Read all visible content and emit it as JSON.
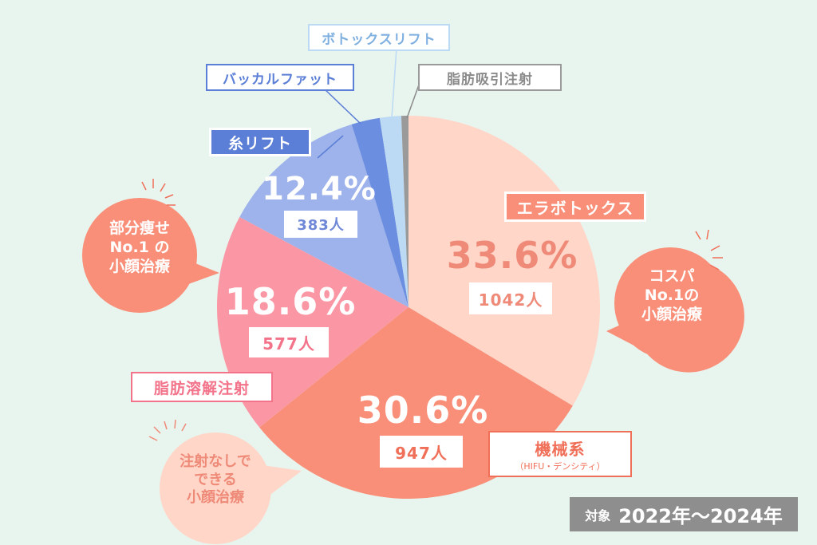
{
  "chart_data": {
    "type": "pie",
    "start_angle_deg": 0,
    "slices": [
      {
        "label": "エラボトックス",
        "percent": 33.6,
        "percent_label": "33.6%",
        "count_label": "1042人",
        "color": "#ffd6c8",
        "text_color": "#ef8a78"
      },
      {
        "label": "機械系",
        "sublabel": "（HIFU・デンシティ）",
        "percent": 30.6,
        "percent_label": "30.6%",
        "count_label": "947人",
        "color": "#f98f78",
        "text_color": "#f06f58"
      },
      {
        "label": "脂肪溶解注射",
        "percent": 18.6,
        "percent_label": "18.6%",
        "count_label": "577人",
        "color": "#fb97a4",
        "text_color": "#f3738a"
      },
      {
        "label": "糸リフト",
        "percent": 12.4,
        "percent_label": "12.4%",
        "count_label": "383人",
        "color": "#9eb2eb",
        "text_color": "#6f88d8"
      },
      {
        "label": "バッカルファット",
        "percent": 2.4,
        "color": "#6c8ee0",
        "text_color": "#5b7ed6"
      },
      {
        "label": "ボトックスリフト",
        "percent": 1.8,
        "color": "#bcdaf4",
        "text_color": "#7fb0e0"
      },
      {
        "label": "脂肪吸引注射",
        "percent": 0.6,
        "color": "#9a9a9a",
        "text_color": "#8a8a8a"
      }
    ]
  },
  "bubbles": {
    "cospa": "コスパ\nNo.1の\n小顔治療",
    "partial": "部分痩せ\nNo.1 の\n小顔治療",
    "no_injection": "注射なしで\nできる\n小顔治療"
  },
  "period": {
    "label": "対象",
    "value": "2022年〜2024年"
  }
}
